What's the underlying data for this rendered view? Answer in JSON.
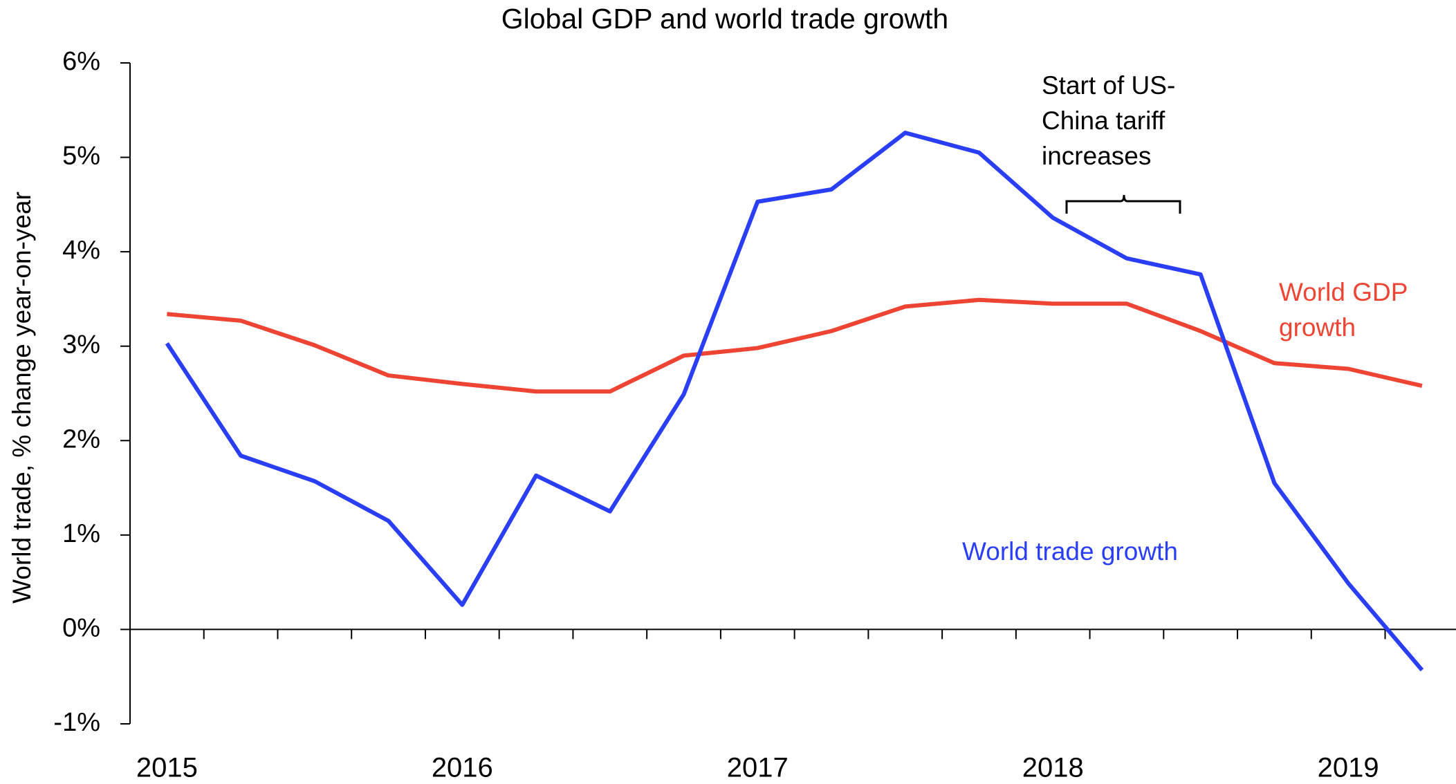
{
  "chart_data": {
    "type": "line",
    "title": "Global GDP and world trade growth",
    "y_label": "World trade, % change year-on-year",
    "x": [
      2015,
      2015.25,
      2015.5,
      2015.75,
      2016,
      2016.25,
      2016.5,
      2016.75,
      2017,
      2017.25,
      2017.5,
      2017.75,
      2018,
      2018.25,
      2018.5,
      2018.75,
      2019,
      2019.25
    ],
    "series": [
      {
        "name": "World trade growth",
        "color": "#2a3ff5",
        "values": [
          3.03,
          1.84,
          1.57,
          1.15,
          0.26,
          1.63,
          1.25,
          2.49,
          4.53,
          4.66,
          5.26,
          5.05,
          4.36,
          3.93,
          3.76,
          1.55,
          0.49,
          -0.43
        ]
      },
      {
        "name": "World GDP growth",
        "color": "#ee4433",
        "values": [
          3.34,
          3.27,
          3.01,
          2.69,
          2.6,
          2.52,
          2.52,
          2.9,
          2.98,
          3.16,
          3.42,
          3.49,
          3.45,
          3.45,
          3.16,
          2.82,
          2.76,
          2.58
        ]
      }
    ],
    "annotations": [
      "Start of US-China tariff increases"
    ],
    "xlim": [
      2014.875,
      2019.365
    ],
    "xticks": [
      2015,
      2016,
      2017,
      2018,
      2019
    ],
    "ylim": [
      -1,
      6
    ],
    "yticks": [
      {
        "value": -1,
        "label": "-1%"
      },
      {
        "value": 0,
        "label": "0%"
      },
      {
        "value": 1,
        "label": "1%"
      },
      {
        "value": 2,
        "label": "2%"
      },
      {
        "value": 3,
        "label": "3%"
      },
      {
        "value": 4,
        "label": "4%"
      },
      {
        "value": 5,
        "label": "5%"
      },
      {
        "value": 6,
        "label": "6%"
      }
    ],
    "grid": false
  }
}
